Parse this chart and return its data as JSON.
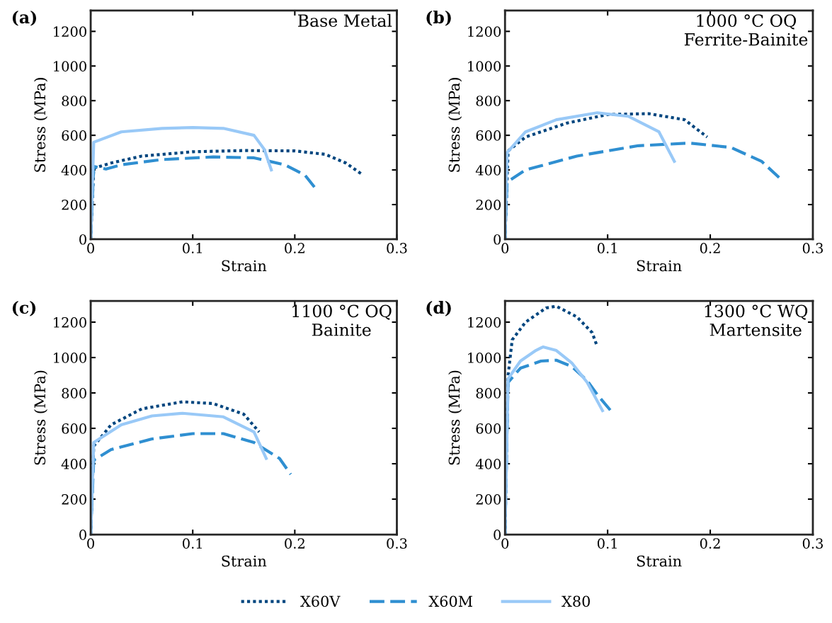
{
  "chart_data": [
    {
      "type": "line",
      "annotations": [
        "(a)",
        "Base Metal"
      ],
      "xlabel": "Strain",
      "ylabel": "Stress (MPa)",
      "xlim": [
        0,
        0.3
      ],
      "xticks": [
        0,
        0.1,
        0.2,
        0.3
      ],
      "ylim": [
        0,
        1320
      ],
      "yticks": [
        0,
        200,
        400,
        600,
        800,
        1000,
        1200
      ],
      "grid": false,
      "series": [
        {
          "color": "#00467f",
          "line_style": "dotted",
          "x": [
            0,
            0.003,
            0.02,
            0.05,
            0.1,
            0.15,
            0.2,
            0.23,
            0.25,
            0.267
          ],
          "values": [
            0,
            410,
            440,
            480,
            505,
            512,
            510,
            490,
            440,
            370
          ]
        },
        {
          "color": "#2f8fd1",
          "line_style": "dashed",
          "x": [
            0,
            0.003,
            0.015,
            0.03,
            0.07,
            0.12,
            0.16,
            0.19,
            0.21,
            0.22
          ],
          "values": [
            0,
            420,
            405,
            430,
            460,
            475,
            470,
            430,
            370,
            295
          ]
        },
        {
          "color": "#99c9f7",
          "line_style": "solid",
          "x": [
            0,
            0.003,
            0.03,
            0.07,
            0.1,
            0.13,
            0.16,
            0.17,
            0.177
          ],
          "values": [
            0,
            560,
            620,
            640,
            645,
            640,
            600,
            520,
            400
          ]
        }
      ]
    },
    {
      "type": "line",
      "annotations": [
        "(b)",
        "1000 °C OQ\nFerrite-Bainite"
      ],
      "xlabel": "Strain",
      "ylabel": "Stress (MPa)",
      "xlim": [
        0,
        0.3
      ],
      "xticks": [
        0,
        0.1,
        0.2,
        0.3
      ],
      "ylim": [
        0,
        1320
      ],
      "yticks": [
        0,
        200,
        400,
        600,
        800,
        1000,
        1200
      ],
      "grid": false,
      "series": [
        {
          "color": "#00467f",
          "line_style": "dotted",
          "x": [
            0,
            0.003,
            0.02,
            0.06,
            0.1,
            0.14,
            0.175,
            0.197
          ],
          "values": [
            0,
            510,
            590,
            670,
            720,
            725,
            690,
            590
          ]
        },
        {
          "color": "#2f8fd1",
          "line_style": "dashed",
          "x": [
            0,
            0.002,
            0.02,
            0.07,
            0.13,
            0.18,
            0.22,
            0.25,
            0.27
          ],
          "values": [
            0,
            330,
            400,
            480,
            540,
            555,
            530,
            450,
            340
          ]
        },
        {
          "color": "#99c9f7",
          "line_style": "solid",
          "x": [
            0,
            0.002,
            0.02,
            0.05,
            0.09,
            0.12,
            0.15,
            0.165
          ],
          "values": [
            0,
            500,
            620,
            690,
            730,
            710,
            620,
            450
          ]
        }
      ]
    },
    {
      "type": "line",
      "annotations": [
        "(c)",
        "1100 °C OQ\nBainite"
      ],
      "xlabel": "Strain",
      "ylabel": "Stress (MPa)",
      "xlim": [
        0,
        0.3
      ],
      "xticks": [
        0,
        0.1,
        0.2,
        0.3
      ],
      "ylim": [
        0,
        1320
      ],
      "yticks": [
        0,
        200,
        400,
        600,
        800,
        1000,
        1200
      ],
      "grid": false,
      "series": [
        {
          "color": "#00467f",
          "line_style": "dotted",
          "x": [
            0,
            0.003,
            0.02,
            0.05,
            0.09,
            0.12,
            0.15,
            0.165
          ],
          "values": [
            0,
            500,
            620,
            710,
            750,
            740,
            680,
            580
          ]
        },
        {
          "color": "#2f8fd1",
          "line_style": "dashed",
          "x": [
            0,
            0.003,
            0.02,
            0.06,
            0.1,
            0.13,
            0.16,
            0.185,
            0.196
          ],
          "values": [
            0,
            420,
            480,
            540,
            570,
            570,
            520,
            430,
            340
          ]
        },
        {
          "color": "#99c9f7",
          "line_style": "solid",
          "x": [
            0,
            0.003,
            0.03,
            0.06,
            0.09,
            0.13,
            0.16,
            0.172
          ],
          "values": [
            0,
            520,
            620,
            670,
            685,
            665,
            580,
            430
          ]
        }
      ]
    },
    {
      "type": "line",
      "annotations": [
        "(d)",
        "1300 °C WQ\nMartensite"
      ],
      "xlabel": "Strain",
      "ylabel": "Stress (MPa)",
      "xlim": [
        0,
        0.3
      ],
      "xticks": [
        0,
        0.1,
        0.2,
        0.3
      ],
      "ylim": [
        0,
        1320
      ],
      "yticks": [
        0,
        200,
        400,
        600,
        800,
        1000,
        1200
      ],
      "grid": false,
      "legend": "bottom",
      "series": [
        {
          "name": "X60V",
          "color": "#00467f",
          "line_style": "dotted",
          "x": [
            0,
            0.003,
            0.007,
            0.02,
            0.04,
            0.05,
            0.07,
            0.085,
            0.09
          ],
          "values": [
            0,
            900,
            1100,
            1200,
            1280,
            1290,
            1230,
            1140,
            1060
          ]
        },
        {
          "name": "X60M",
          "color": "#2f8fd1",
          "line_style": "dashed",
          "x": [
            0,
            0.003,
            0.015,
            0.035,
            0.05,
            0.065,
            0.08,
            0.09,
            0.103
          ],
          "values": [
            0,
            860,
            940,
            980,
            985,
            950,
            870,
            790,
            700
          ]
        },
        {
          "name": "X80",
          "color": "#99c9f7",
          "line_style": "solid",
          "x": [
            0,
            0.003,
            0.015,
            0.03,
            0.037,
            0.05,
            0.065,
            0.08,
            0.095
          ],
          "values": [
            0,
            880,
            980,
            1040,
            1060,
            1040,
            970,
            860,
            700
          ]
        }
      ]
    }
  ]
}
